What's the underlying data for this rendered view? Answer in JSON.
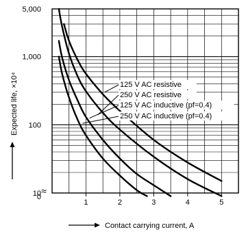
{
  "chart_data": {
    "type": "line",
    "title": "",
    "xlabel": "Contact carrying current, A",
    "ylabel": "Expected life, ×10⁴",
    "x_scale": "linear",
    "y_scale": "log",
    "xlim": [
      0,
      5.5
    ],
    "ylim": [
      10,
      5000
    ],
    "x_ticks": [
      "1",
      "2",
      "3",
      "4",
      "5"
    ],
    "y_ticks": [
      "10",
      "100",
      "1,000",
      "5,000"
    ],
    "y_zero_label": "0",
    "axis_break_symbol": "≈",
    "grid": true,
    "series": [
      {
        "name": "125 V AC resistive",
        "x": [
          0.35,
          0.5,
          0.75,
          1.0,
          1.5,
          2.0,
          3.0,
          4.0,
          5.0
        ],
        "y": [
          3000,
          1700,
          900,
          560,
          280,
          160,
          60,
          28,
          15
        ]
      },
      {
        "name": "250 V AC resistive",
        "x": [
          0.2,
          0.3,
          0.5,
          0.75,
          1.0,
          1.5,
          2.0,
          3.0,
          4.0,
          5.0
        ],
        "y": [
          5000,
          2700,
          1100,
          520,
          310,
          150,
          85,
          34,
          16,
          9
        ]
      },
      {
        "name": "125 V AC inductive (pf=0.4)",
        "x": [
          0.2,
          0.3,
          0.5,
          0.75,
          1.0,
          1.5,
          2.0,
          2.5,
          3.0,
          3.5
        ],
        "y": [
          1700,
          950,
          450,
          230,
          130,
          60,
          32,
          19,
          13,
          9
        ]
      },
      {
        "name": "250 V AC inductive (pf=0.4)",
        "x": [
          0.2,
          0.3,
          0.5,
          0.75,
          1.0,
          1.5,
          2.0,
          2.5,
          2.8
        ],
        "y": [
          1000,
          550,
          250,
          120,
          70,
          32,
          18,
          11,
          9
        ]
      }
    ],
    "annotations": [
      "125 V AC resistive",
      "250 V AC resistive",
      "125 V AC inductive (pf=0.4)",
      "250 V AC inductive (pf=0.4)"
    ]
  }
}
